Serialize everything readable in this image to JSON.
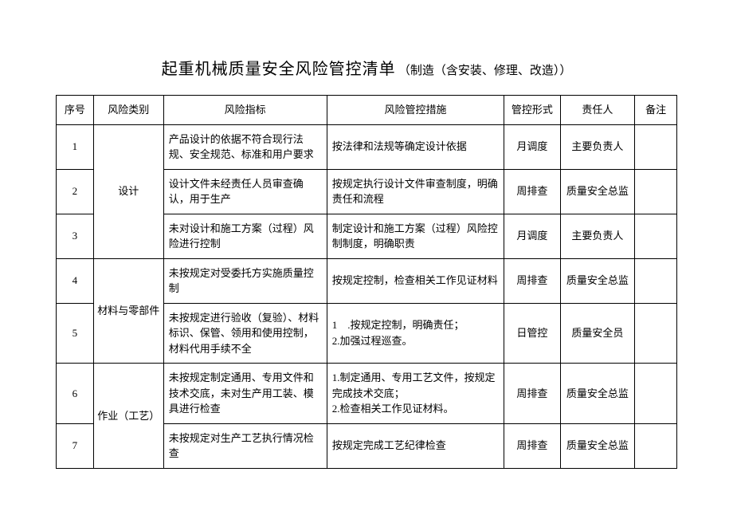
{
  "title": {
    "main": "起重机械质量安全风险管控清单",
    "sub": "（制造（含安装、修理、改造））"
  },
  "columns": {
    "seq": "序号",
    "category": "风险类别",
    "indicator": "风险指标",
    "measure": "风险管控措施",
    "control": "管控形式",
    "responsible": "责任人",
    "remark": "备注"
  },
  "rows": {
    "r1": {
      "seq": "1",
      "category": "设计",
      "indicator": "产品设计的依据不符合现行法规、安全规范、标准和用户要求",
      "measure": "按法律和法规等确定设计依据",
      "control": "月调度",
      "responsible": "主要负责人",
      "remark": ""
    },
    "r2": {
      "seq": "2",
      "indicator": "设计文件未经责任人员审查确认，用于生产",
      "measure": "按规定执行设计文件审查制度，明确责任和流程",
      "control": "周排查",
      "responsible": "质量安全总监",
      "remark": ""
    },
    "r3": {
      "seq": "3",
      "indicator": "未对设计和施工方案（过程）风险进行控制",
      "measure": "制定设计和施工方案（过程）风险控制制度，明确职责",
      "control": "月调度",
      "responsible": "主要负责人",
      "remark": ""
    },
    "r4": {
      "seq": "4",
      "category": "材料与零部件",
      "indicator": "未按规定对受委托方实施质量控制",
      "measure": "按规定控制，检查相关工作见证材料",
      "control": "周排查",
      "responsible": "质量安全总监",
      "remark": ""
    },
    "r5": {
      "seq": "5",
      "indicator": "未按规定进行验收（复验）、材料标识、保管、领用和使用控制，材料代用手续不全",
      "measure": "1　.按规定控制，明确责任；\n2.加强过程巡查。",
      "control": "日管控",
      "responsible": "质量安全员",
      "remark": ""
    },
    "r6": {
      "seq": "6",
      "category": "作业（工艺）",
      "indicator": "未按规定制定通用、专用文件和技术交底，未对生产用工装、模具进行检查",
      "measure": "1.制定通用、专用工艺文件，按规定完成技术交底；\n2.检查相关工作见证材料。",
      "control": "周排查",
      "responsible": "质量安全总监",
      "remark": ""
    },
    "r7": {
      "seq": "7",
      "indicator": "未按规定对生产工艺执行情况检查",
      "measure": "按规定完成工艺纪律检查",
      "control": "周排查",
      "responsible": "质量安全总监",
      "remark": ""
    }
  }
}
